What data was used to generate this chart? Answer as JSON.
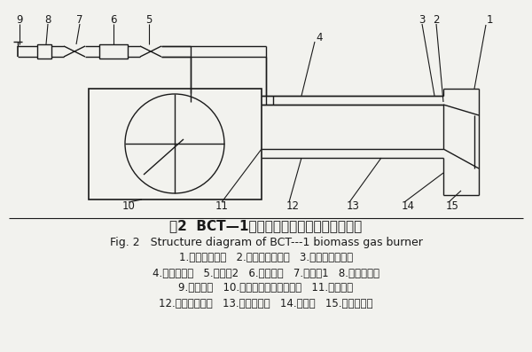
{
  "bg_color": "#f2f2ee",
  "line_color": "#1a1a1a",
  "title_cn": "图2  BCT—1型生物质燃气燃烧器结构示意图",
  "title_en": "Fig. 2   Structure diagram of BCT---1 biomass gas burner",
  "legend_line1": "1.火焰稳定格网   2.热敏传感器探头   3.光敏传感器探头",
  "legend_line2": "4.燃气布气器   5.燃气阀2   6.燃气管路   7.电磁阀1   8.燃气过滤器",
  "legend_line3": "9.燃气总阀   10.油泵、风机、控制单元   11.供风通道",
  "legend_line4": "12.柴油雾化喷嘴   13.高压点火器   14.燃烧区   15.高温烟气区"
}
